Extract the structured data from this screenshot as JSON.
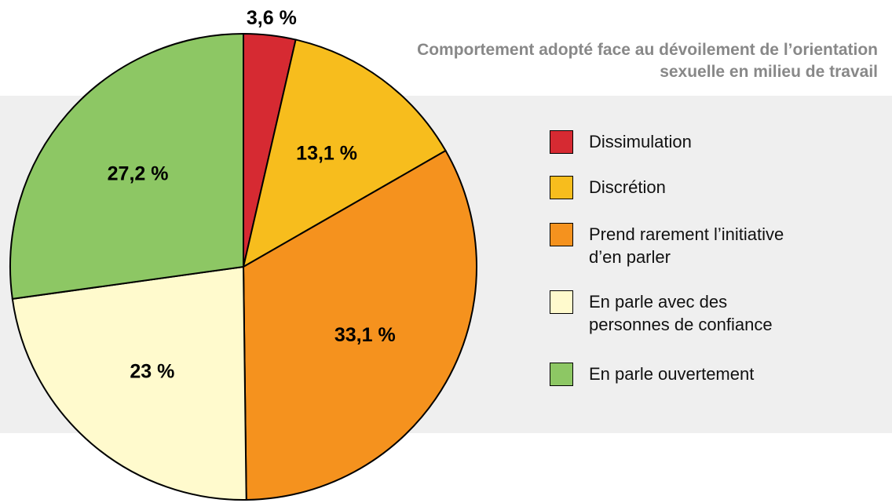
{
  "chart_data": {
    "type": "pie",
    "title": "Comportement adopté face au dévoilement de l’orientation sexuelle en milieu de travail",
    "categories": [
      "Dissimulation",
      "Discrétion",
      "Prend rarement l’initiative d’en parler",
      "En parle avec des personnes de confiance",
      "En parle ouvertement"
    ],
    "values": [
      3.6,
      13.1,
      33.1,
      23,
      27.2
    ],
    "value_labels": [
      "3,6 %",
      "13,1 %",
      "33,1 %",
      "23 %",
      "27,2 %"
    ],
    "colors": [
      "#d62a32",
      "#f7bd1d",
      "#f5921e",
      "#fffacd",
      "#8dc764"
    ]
  }
}
